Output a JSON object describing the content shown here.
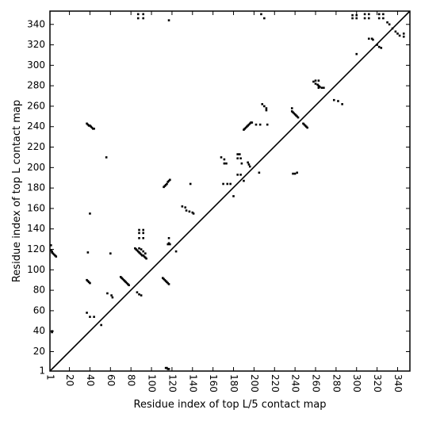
{
  "chart_data": {
    "type": "scatter",
    "title": "",
    "xlabel": "Residue index of top L/5 contact map",
    "ylabel": "Residue index of top L contact map",
    "xlim": [
      1,
      352
    ],
    "ylim": [
      1,
      353
    ],
    "grid": false,
    "legend": "none",
    "x_ticks": [
      1,
      20,
      40,
      60,
      80,
      100,
      120,
      140,
      160,
      180,
      200,
      220,
      240,
      260,
      280,
      300,
      320,
      340
    ],
    "y_ticks": [
      1,
      20,
      40,
      60,
      80,
      100,
      120,
      140,
      160,
      180,
      200,
      220,
      240,
      260,
      280,
      300,
      320,
      340
    ],
    "x_tick_labels": [
      "1",
      "20",
      "40",
      "60",
      "80",
      "100",
      "120",
      "140",
      "160",
      "180",
      "200",
      "220",
      "240",
      "260",
      "280",
      "300",
      "320",
      "340"
    ],
    "y_tick_labels": [
      "1",
      "20",
      "40",
      "60",
      "80",
      "100",
      "120",
      "140",
      "160",
      "180",
      "200",
      "220",
      "240",
      "260",
      "280",
      "300",
      "320",
      "340"
    ],
    "diagonal": {
      "from": [
        1,
        1
      ],
      "to": [
        352,
        353
      ]
    },
    "series": [
      {
        "marker": "square",
        "color": "#000000",
        "points": [
          [
            2,
            119
          ],
          [
            3,
            118
          ],
          [
            3,
            117
          ],
          [
            4,
            116
          ],
          [
            5,
            115
          ],
          [
            6,
            114
          ],
          [
            7,
            113
          ],
          [
            2,
            124
          ],
          [
            3,
            39
          ],
          [
            3,
            40
          ],
          [
            37,
            90
          ],
          [
            38,
            89
          ],
          [
            39,
            88
          ],
          [
            40,
            87
          ],
          [
            38,
            117
          ],
          [
            40,
            155
          ],
          [
            37,
            58
          ],
          [
            40,
            54
          ],
          [
            44,
            54
          ],
          [
            51,
            46
          ],
          [
            56,
            210
          ],
          [
            57,
            77
          ],
          [
            60,
            116
          ],
          [
            61,
            75
          ],
          [
            62,
            73
          ],
          [
            37,
            243
          ],
          [
            38,
            242
          ],
          [
            39,
            241
          ],
          [
            40,
            241
          ],
          [
            41,
            240
          ],
          [
            42,
            239
          ],
          [
            43,
            238
          ],
          [
            44,
            238
          ],
          [
            70,
            93
          ],
          [
            71,
            92
          ],
          [
            72,
            91
          ],
          [
            73,
            90
          ],
          [
            74,
            89
          ],
          [
            75,
            88
          ],
          [
            76,
            87
          ],
          [
            77,
            86
          ],
          [
            78,
            85
          ],
          [
            84,
            121
          ],
          [
            85,
            120
          ],
          [
            86,
            119
          ],
          [
            87,
            118
          ],
          [
            88,
            117
          ],
          [
            89,
            116
          ],
          [
            90,
            115
          ],
          [
            91,
            114
          ],
          [
            92,
            114
          ],
          [
            93,
            113
          ],
          [
            94,
            112
          ],
          [
            95,
            111
          ],
          [
            88,
            121
          ],
          [
            90,
            120
          ],
          [
            92,
            118
          ],
          [
            94,
            116
          ],
          [
            86,
            78
          ],
          [
            88,
            76
          ],
          [
            90,
            75
          ],
          [
            88,
            131
          ],
          [
            88,
            136
          ],
          [
            88,
            139
          ],
          [
            92,
            131
          ],
          [
            92,
            136
          ],
          [
            92,
            139
          ],
          [
            87,
            350
          ],
          [
            87,
            346
          ],
          [
            92,
            350
          ],
          [
            92,
            346
          ],
          [
            117,
            344
          ],
          [
            111,
            92
          ],
          [
            112,
            91
          ],
          [
            113,
            90
          ],
          [
            114,
            89
          ],
          [
            115,
            88
          ],
          [
            116,
            87
          ],
          [
            117,
            86
          ],
          [
            112,
            181
          ],
          [
            113,
            182
          ],
          [
            114,
            183
          ],
          [
            115,
            184
          ],
          [
            116,
            186
          ],
          [
            117,
            187
          ],
          [
            118,
            188
          ],
          [
            116,
            125
          ],
          [
            117,
            126
          ],
          [
            118,
            125
          ],
          [
            117,
            131
          ],
          [
            124,
            118
          ],
          [
            114,
            4
          ],
          [
            115,
            4
          ],
          [
            116,
            3
          ],
          [
            117,
            3
          ],
          [
            130,
            162
          ],
          [
            133,
            161
          ],
          [
            134,
            158
          ],
          [
            137,
            157
          ],
          [
            140,
            156
          ],
          [
            141,
            155
          ],
          [
            138,
            184
          ],
          [
            168,
            210
          ],
          [
            171,
            208
          ],
          [
            171,
            204
          ],
          [
            173,
            204
          ],
          [
            170,
            184
          ],
          [
            174,
            184
          ],
          [
            177,
            184
          ],
          [
            184,
            213
          ],
          [
            186,
            213
          ],
          [
            184,
            209
          ],
          [
            187,
            209
          ],
          [
            188,
            204
          ],
          [
            184,
            193
          ],
          [
            187,
            193
          ],
          [
            190,
            187
          ],
          [
            180,
            172
          ],
          [
            190,
            237
          ],
          [
            191,
            238
          ],
          [
            192,
            239
          ],
          [
            193,
            240
          ],
          [
            194,
            241
          ],
          [
            195,
            242
          ],
          [
            196,
            243
          ],
          [
            197,
            244
          ],
          [
            198,
            244
          ],
          [
            202,
            242
          ],
          [
            206,
            242
          ],
          [
            194,
            205
          ],
          [
            195,
            203
          ],
          [
            196,
            201
          ],
          [
            205,
            195
          ],
          [
            208,
            262
          ],
          [
            210,
            260
          ],
          [
            212,
            258
          ],
          [
            212,
            256
          ],
          [
            213,
            242
          ],
          [
            207,
            350
          ],
          [
            210,
            346
          ],
          [
            237,
            255
          ],
          [
            238,
            254
          ],
          [
            239,
            253
          ],
          [
            240,
            252
          ],
          [
            241,
            251
          ],
          [
            242,
            250
          ],
          [
            243,
            249
          ],
          [
            238,
            194
          ],
          [
            240,
            194
          ],
          [
            242,
            195
          ],
          [
            237,
            258
          ],
          [
            248,
            243
          ],
          [
            249,
            242
          ],
          [
            250,
            241
          ],
          [
            251,
            240
          ],
          [
            252,
            239
          ],
          [
            258,
            284
          ],
          [
            260,
            282
          ],
          [
            262,
            281
          ],
          [
            263,
            280
          ],
          [
            264,
            279
          ],
          [
            266,
            278
          ],
          [
            268,
            278
          ],
          [
            260,
            285
          ],
          [
            263,
            285
          ],
          [
            263,
            278
          ],
          [
            278,
            266
          ],
          [
            282,
            265
          ],
          [
            286,
            262
          ],
          [
            300,
            311
          ],
          [
            296,
            349
          ],
          [
            296,
            346
          ],
          [
            300,
            349
          ],
          [
            300,
            346
          ],
          [
            308,
            350
          ],
          [
            308,
            346
          ],
          [
            312,
            350
          ],
          [
            312,
            346
          ],
          [
            312,
            326
          ],
          [
            315,
            326
          ],
          [
            316,
            325
          ],
          [
            320,
            320
          ],
          [
            322,
            318
          ],
          [
            324,
            317
          ],
          [
            322,
            350
          ],
          [
            322,
            346
          ],
          [
            326,
            350
          ],
          [
            326,
            346
          ],
          [
            330,
            342
          ],
          [
            332,
            340
          ],
          [
            335,
            336
          ],
          [
            338,
            333
          ],
          [
            340,
            331
          ],
          [
            342,
            329
          ],
          [
            346,
            328
          ],
          [
            346,
            331
          ]
        ]
      }
    ]
  }
}
